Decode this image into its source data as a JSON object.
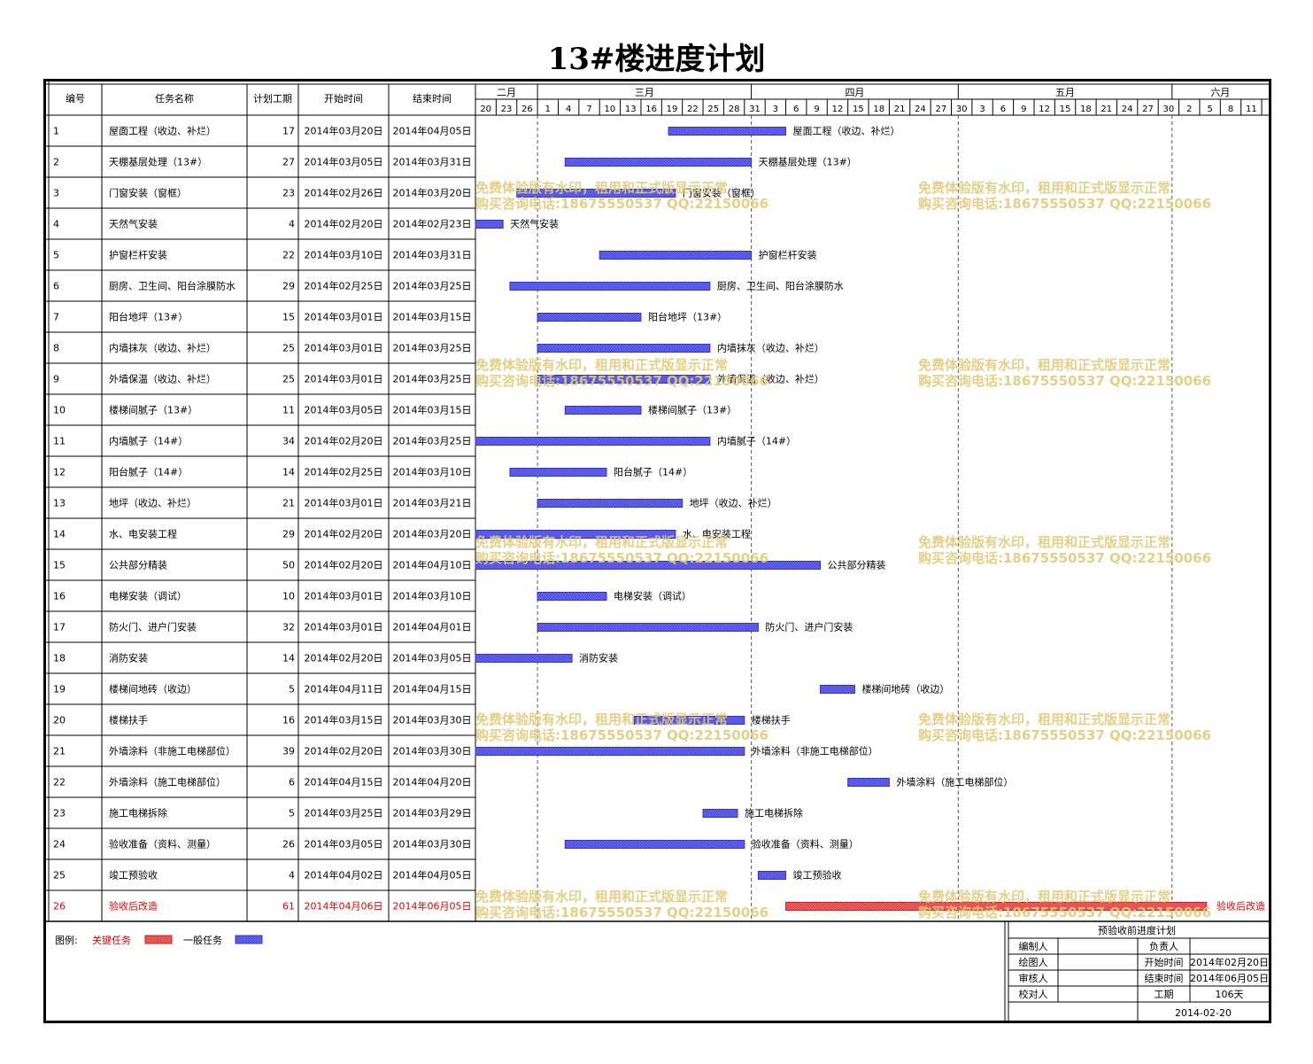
{
  "title": "13#楼进度计划",
  "columns": {
    "id": "编号",
    "name": "任务名称",
    "duration": "计划工期",
    "start": "开始时间",
    "end": "结束时间"
  },
  "timeline": {
    "start_date": "2014-02-20",
    "months": [
      {
        "label": "二月",
        "start_day": 0,
        "end_day": 9
      },
      {
        "label": "三月",
        "start_day": 9,
        "end_day": 40
      },
      {
        "label": "四月",
        "start_day": 40,
        "end_day": 70
      },
      {
        "label": "五月",
        "start_day": 70,
        "end_day": 101
      },
      {
        "label": "六月",
        "start_day": 101,
        "end_day": 115
      }
    ],
    "ticks": [
      "20",
      "23",
      "26",
      "1",
      "4",
      "7",
      "10",
      "13",
      "16",
      "19",
      "22",
      "25",
      "28",
      "31",
      "3",
      "6",
      "9",
      "12",
      "15",
      "18",
      "21",
      "24",
      "27",
      "30",
      "3",
      "6",
      "9",
      "12",
      "15",
      "18",
      "21",
      "24",
      "27",
      "30",
      "2",
      "5",
      "8",
      "11"
    ]
  },
  "colors": {
    "normal_bar": "#3333cc",
    "normal_fill": "#6666ee",
    "critical_bar": "#cc2222",
    "critical_fill": "#ee6666",
    "critical_text": "#e00000",
    "watermark": "#e0cc7a"
  },
  "chart_data": {
    "type": "gantt",
    "tasks": [
      {
        "id": "1",
        "name": "屋面工程（收边、补烂）",
        "duration": 17,
        "start": "2014年03月20日",
        "end": "2014年04月05日",
        "start_day": 28,
        "end_day": 45,
        "critical": false
      },
      {
        "id": "2",
        "name": "天棚基层处理（13#）",
        "duration": 27,
        "start": "2014年03月05日",
        "end": "2014年03月31日",
        "start_day": 13,
        "end_day": 40,
        "critical": false
      },
      {
        "id": "3",
        "name": "门窗安装（窗框）",
        "duration": 23,
        "start": "2014年02月26日",
        "end": "2014年03月20日",
        "start_day": 6,
        "end_day": 29,
        "critical": false
      },
      {
        "id": "4",
        "name": "天然气安装",
        "duration": 4,
        "start": "2014年02月20日",
        "end": "2014年02月23日",
        "start_day": 0,
        "end_day": 4,
        "critical": false
      },
      {
        "id": "5",
        "name": "护窗栏杆安装",
        "duration": 22,
        "start": "2014年03月10日",
        "end": "2014年03月31日",
        "start_day": 18,
        "end_day": 40,
        "critical": false
      },
      {
        "id": "6",
        "name": "厨房、卫生间、阳台涂膜防水",
        "duration": 29,
        "start": "2014年02月25日",
        "end": "2014年03月25日",
        "start_day": 5,
        "end_day": 34,
        "critical": false
      },
      {
        "id": "7",
        "name": "阳台地坪（13#）",
        "duration": 15,
        "start": "2014年03月01日",
        "end": "2014年03月15日",
        "start_day": 9,
        "end_day": 24,
        "critical": false
      },
      {
        "id": "8",
        "name": "内墙抹灰（收边、补烂）",
        "duration": 25,
        "start": "2014年03月01日",
        "end": "2014年03月25日",
        "start_day": 9,
        "end_day": 34,
        "critical": false
      },
      {
        "id": "9",
        "name": "外墙保温（收边、补烂）",
        "duration": 25,
        "start": "2014年03月01日",
        "end": "2014年03月25日",
        "start_day": 9,
        "end_day": 34,
        "critical": false
      },
      {
        "id": "10",
        "name": "楼梯间腻子（13#）",
        "duration": 11,
        "start": "2014年03月05日",
        "end": "2014年03月15日",
        "start_day": 13,
        "end_day": 24,
        "critical": false
      },
      {
        "id": "11",
        "name": "内墙腻子（14#）",
        "duration": 34,
        "start": "2014年02月20日",
        "end": "2014年03月25日",
        "start_day": 0,
        "end_day": 34,
        "critical": false
      },
      {
        "id": "12",
        "name": "阳台腻子（14#）",
        "duration": 14,
        "start": "2014年02月25日",
        "end": "2014年03月10日",
        "start_day": 5,
        "end_day": 19,
        "critical": false
      },
      {
        "id": "13",
        "name": "地坪（收边、补烂）",
        "duration": 21,
        "start": "2014年03月01日",
        "end": "2014年03月21日",
        "start_day": 9,
        "end_day": 30,
        "critical": false
      },
      {
        "id": "14",
        "name": "水、电安装工程",
        "duration": 29,
        "start": "2014年02月20日",
        "end": "2014年03月20日",
        "start_day": 0,
        "end_day": 29,
        "critical": false
      },
      {
        "id": "15",
        "name": "公共部分精装",
        "duration": 50,
        "start": "2014年02月20日",
        "end": "2014年04月10日",
        "start_day": 0,
        "end_day": 50,
        "critical": false
      },
      {
        "id": "16",
        "name": "电梯安装（调试）",
        "duration": 10,
        "start": "2014年03月01日",
        "end": "2014年03月10日",
        "start_day": 9,
        "end_day": 19,
        "critical": false
      },
      {
        "id": "17",
        "name": "防火门、进户门安装",
        "duration": 32,
        "start": "2014年03月01日",
        "end": "2014年04月01日",
        "start_day": 9,
        "end_day": 41,
        "critical": false
      },
      {
        "id": "18",
        "name": "消防安装",
        "duration": 14,
        "start": "2014年02月20日",
        "end": "2014年03月05日",
        "start_day": 0,
        "end_day": 14,
        "critical": false
      },
      {
        "id": "19",
        "name": "楼梯间地砖（收边）",
        "duration": 5,
        "start": "2014年04月11日",
        "end": "2014年04月15日",
        "start_day": 50,
        "end_day": 55,
        "critical": false
      },
      {
        "id": "20",
        "name": "楼梯扶手",
        "duration": 16,
        "start": "2014年03月15日",
        "end": "2014年03月30日",
        "start_day": 23,
        "end_day": 39,
        "critical": false
      },
      {
        "id": "21",
        "name": "外墙涂料（非施工电梯部位）",
        "duration": 39,
        "start": "2014年02月20日",
        "end": "2014年03月30日",
        "start_day": 0,
        "end_day": 39,
        "critical": false
      },
      {
        "id": "22",
        "name": "外墙涂料（施工电梯部位）",
        "duration": 6,
        "start": "2014年04月15日",
        "end": "2014年04月20日",
        "start_day": 54,
        "end_day": 60,
        "critical": false
      },
      {
        "id": "23",
        "name": "施工电梯拆除",
        "duration": 5,
        "start": "2014年03月25日",
        "end": "2014年03月29日",
        "start_day": 33,
        "end_day": 38,
        "critical": false
      },
      {
        "id": "24",
        "name": "验收准备（资料、测量）",
        "duration": 26,
        "start": "2014年03月05日",
        "end": "2014年03月30日",
        "start_day": 13,
        "end_day": 39,
        "critical": false
      },
      {
        "id": "25",
        "name": "竣工预验收",
        "duration": 4,
        "start": "2014年04月02日",
        "end": "2014年04月05日",
        "start_day": 41,
        "end_day": 45,
        "critical": false
      },
      {
        "id": "26",
        "name": "验收后改造",
        "duration": 61,
        "start": "2014年04月06日",
        "end": "2014年06月05日",
        "start_day": 45,
        "end_day": 106,
        "critical": true
      }
    ]
  },
  "watermark": {
    "line1": "免费体验版有水印，租用和正式版显示正常",
    "line2": "购买咨询电话:18675550537 QQ:22150066"
  },
  "legend": {
    "label": "图例:",
    "critical": "关键任务",
    "normal": "一般任务"
  },
  "info_box": {
    "title": "预验收前进度计划",
    "editor_label": "编制人",
    "editor_value": "",
    "owner_label": "负责人",
    "owner_value": "",
    "drawer_label": "绘图人",
    "drawer_value": "",
    "start_label": "开始时间",
    "start_value": "2014年02月20日",
    "reviewer_label": "审核人",
    "reviewer_value": "",
    "end_label": "结束时间",
    "end_value": "2014年06月05日",
    "checker_label": "校对人",
    "checker_value": "",
    "duration_label": "工期",
    "duration_value": "106天",
    "date": "2014-02-20"
  }
}
